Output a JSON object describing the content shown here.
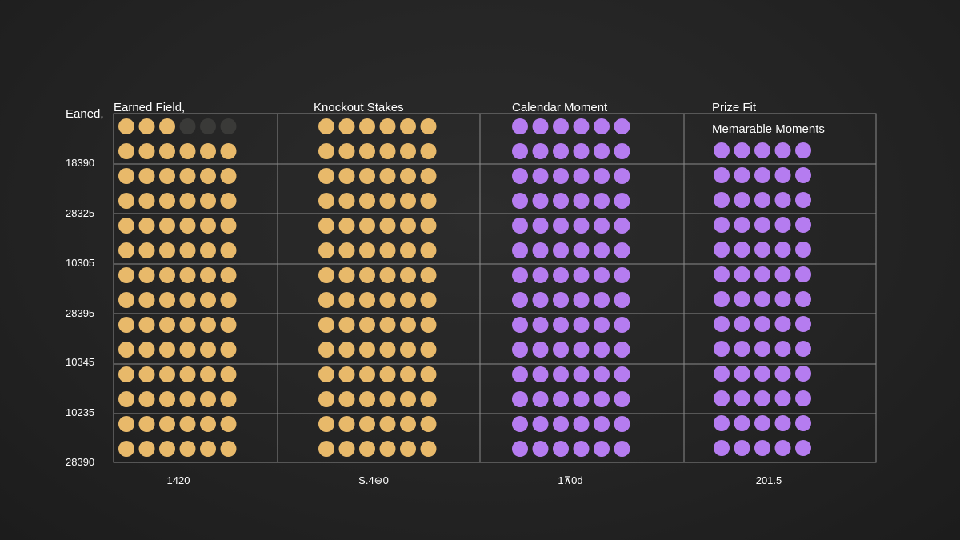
{
  "chart_data": {
    "type": "waffle",
    "y_axis_title": "Eaned,",
    "row_labels": [
      "18390",
      "28325",
      "10305",
      "28395",
      "10345",
      "10235",
      "28390"
    ],
    "columns": [
      {
        "title": "Earned Field,",
        "subtitle": "",
        "footer": "1420",
        "dots_per_row": 6,
        "color": "#e8b96a",
        "empty_color": "#3a3a38",
        "rows_filled": [
          3,
          6,
          6,
          6,
          6,
          6,
          6,
          6,
          6,
          6,
          6,
          6,
          6,
          6
        ]
      },
      {
        "title": "Knockout Stakes",
        "subtitle": "",
        "footer": "S.4⊖0",
        "dots_per_row": 6,
        "color": "#e8b96a",
        "empty_color": "#3a3a38",
        "rows_filled": [
          6,
          6,
          6,
          6,
          6,
          6,
          6,
          6,
          6,
          6,
          6,
          6,
          6,
          6
        ]
      },
      {
        "title": "Calendar Moment",
        "subtitle": "",
        "footer": "1⊼0d",
        "dots_per_row": 6,
        "color": "#b57cf0",
        "empty_color": "#3a3a38",
        "rows_filled": [
          6,
          6,
          6,
          6,
          6,
          6,
          6,
          6,
          6,
          6,
          6,
          6,
          6,
          6
        ]
      },
      {
        "title": "Prize Fit",
        "subtitle": "Memarable Moments",
        "footer": "201.5",
        "dots_per_row": 5,
        "color": "#b57cf0",
        "empty_color": "#3a3a38",
        "rows_filled": [
          5,
          5,
          5,
          5,
          5,
          5,
          5,
          5,
          5,
          5,
          5,
          5,
          5
        ]
      }
    ]
  }
}
